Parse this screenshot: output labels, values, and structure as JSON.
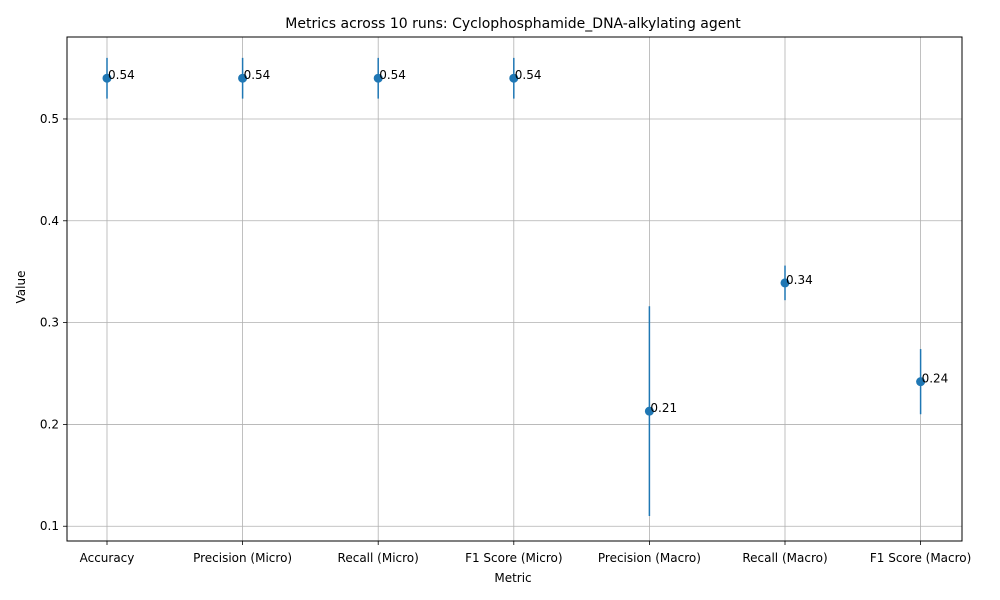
{
  "chart_data": {
    "type": "scatter",
    "title": "Metrics across 10 runs: Cyclophosphamide_DNA-alkylating agent",
    "xlabel": "Metric",
    "ylabel": "Value",
    "categories": [
      "Accuracy",
      "Precision (Micro)",
      "Recall (Micro)",
      "F1 Score (Micro)",
      "Precision (Macro)",
      "Recall (Macro)",
      "F1 Score (Macro)"
    ],
    "values": [
      0.54,
      0.54,
      0.54,
      0.54,
      0.213,
      0.339,
      0.242
    ],
    "errors": [
      0.02,
      0.02,
      0.02,
      0.02,
      0.103,
      0.017,
      0.032
    ],
    "data_labels": [
      "0.54",
      "0.54",
      "0.54",
      "0.54",
      "0.21",
      "0.34",
      "0.24"
    ],
    "yticks": [
      0.1,
      0.2,
      0.3,
      0.4,
      0.5
    ],
    "ytick_labels": [
      "0.1",
      "0.2",
      "0.3",
      "0.4",
      "0.5"
    ],
    "ylim": [
      0.0855,
      0.5805
    ],
    "grid": true,
    "color": "#1f77b4"
  }
}
